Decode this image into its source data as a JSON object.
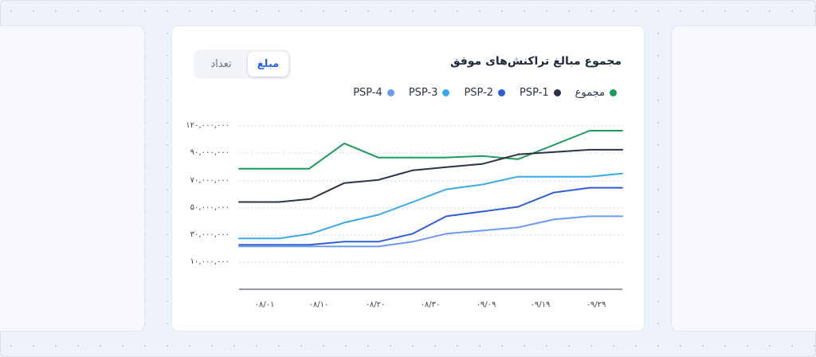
{
  "card": {
    "title": "مجموع مبالغ تراکنش‌های موفق",
    "tabs": [
      {
        "label": "تعداد",
        "active": false
      },
      {
        "label": "مبلغ",
        "active": true
      }
    ]
  },
  "legend": [
    {
      "label": "PSP-4",
      "color": "#6b9bf2"
    },
    {
      "label": "PSP-3",
      "color": "#3aa9e8"
    },
    {
      "label": "PSP-2",
      "color": "#2f5fd8"
    },
    {
      "label": "PSP-1",
      "color": "#2b3446"
    },
    {
      "label": "مجموع",
      "color": "#1e9a5a"
    }
  ],
  "chart_data": {
    "type": "line",
    "xlabel": "",
    "ylabel": "",
    "grid": true,
    "legend_position": "top-right",
    "y_tick_labels": [
      "۱۰,۰۰۰,۰۰۰",
      "۳۰,۰۰۰,۰۰۰",
      "۵۰,۰۰۰,۰۰۰",
      "۷۰,۰۰۰,۰۰۰",
      "۹۰,۰۰۰,۰۰۰",
      "۱۲۰,۰۰۰,۰۰۰"
    ],
    "y_tick_values": [
      10000000,
      30000000,
      50000000,
      70000000,
      90000000,
      120000000
    ],
    "x_tick_labels": [
      "۰۸/۰۱",
      "۰۸/۱۰",
      "۰۸/۲۰",
      "۰۸/۳۰",
      "۰۹/۰۹",
      "۰۹/۱۹",
      "۰۹/۲۹"
    ],
    "x": [
      0,
      5,
      10,
      13,
      16,
      21,
      26,
      31,
      36,
      41,
      46,
      51,
      56,
      61,
      66,
      71,
      76,
      81,
      86,
      91,
      96,
      101,
      106,
      111,
      116,
      121,
      126,
      131,
      136,
      141,
      146,
      151,
      156,
      161,
      166,
      171,
      176,
      181,
      186,
      191,
      196,
      201,
      206,
      211,
      216,
      221,
      226,
      231,
      236,
      241,
      246,
      251,
      256,
      261,
      266,
      271,
      276,
      281,
      286,
      291,
      296,
      301,
      306,
      311,
      316,
      321,
      326,
      331,
      336,
      341,
      346,
      351,
      356,
      361,
      366,
      371,
      376,
      381,
      386,
      391,
      396,
      401,
      406,
      411,
      416,
      421,
      426,
      431,
      436,
      441,
      446,
      451,
      456,
      461,
      466,
      471,
      476,
      481
    ],
    "series": [
      {
        "name": "مجموع",
        "color": "#1e9a5a",
        "points": [
          [
            0,
            76
          ],
          [
            88,
            76
          ],
          [
            132,
            92
          ],
          [
            175,
            83
          ],
          [
            258,
            83
          ],
          [
            305,
            84
          ],
          [
            350,
            82
          ],
          [
            440,
            100
          ],
          [
            481,
            100
          ]
        ]
      },
      {
        "name": "PSP-1",
        "color": "#2b3446",
        "points": [
          [
            0,
            55
          ],
          [
            50,
            55
          ],
          [
            90,
            57
          ],
          [
            132,
            67
          ],
          [
            175,
            69
          ],
          [
            218,
            75
          ],
          [
            260,
            77
          ],
          [
            305,
            79
          ],
          [
            350,
            85
          ],
          [
            440,
            88
          ],
          [
            481,
            88
          ]
        ]
      },
      {
        "name": "PSP-3",
        "color": "#3aa9e8",
        "points": [
          [
            0,
            32
          ],
          [
            50,
            32
          ],
          [
            90,
            35
          ],
          [
            132,
            42
          ],
          [
            175,
            47
          ],
          [
            218,
            55
          ],
          [
            260,
            63
          ],
          [
            305,
            66
          ],
          [
            350,
            71
          ],
          [
            440,
            71
          ],
          [
            481,
            73
          ]
        ]
      },
      {
        "name": "PSP-2",
        "color": "#2f5fd8",
        "points": [
          [
            0,
            28
          ],
          [
            88,
            28
          ],
          [
            132,
            30
          ],
          [
            175,
            30
          ],
          [
            218,
            35
          ],
          [
            260,
            46
          ],
          [
            305,
            49
          ],
          [
            350,
            52
          ],
          [
            395,
            61
          ],
          [
            440,
            64
          ],
          [
            481,
            64
          ]
        ]
      },
      {
        "name": "PSP-4",
        "color": "#6b9bf2",
        "points": [
          [
            0,
            27
          ],
          [
            175,
            27
          ],
          [
            218,
            30
          ],
          [
            260,
            35
          ],
          [
            305,
            37
          ],
          [
            350,
            39
          ],
          [
            395,
            44
          ],
          [
            440,
            46
          ],
          [
            481,
            46
          ]
        ]
      }
    ]
  }
}
